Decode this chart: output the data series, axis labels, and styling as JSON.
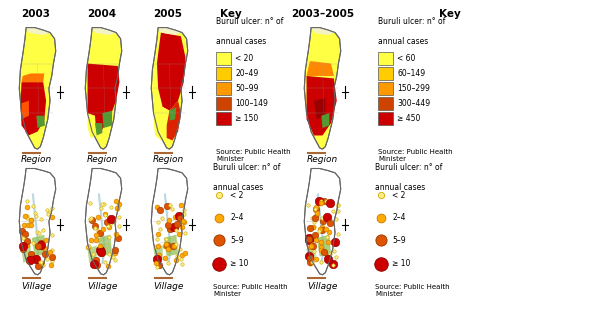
{
  "bg_color": "#ffffff",
  "region_key_labels_annual": [
    "< 20",
    "20–49",
    "50–99",
    "100–149",
    "≥ 150"
  ],
  "region_key_labels_cumul": [
    "< 60",
    "60–149",
    "150–299",
    "300–449",
    "≥ 450"
  ],
  "village_key_labels": [
    "< 2",
    "2–4",
    "5–9",
    "≥ 10"
  ],
  "col_titles": [
    "2003",
    "2004",
    "2005",
    "Key",
    "2003–2005",
    "Key"
  ],
  "key_colors_annual": [
    "#ffff44",
    "#ffcc00",
    "#ff9900",
    "#cc4400",
    "#cc0000"
  ],
  "key_colors_cumul": [
    "#ffff44",
    "#ffcc00",
    "#ff9900",
    "#cc4400",
    "#cc0000"
  ],
  "dot_colors": [
    "#ffee88",
    "#ffaa00",
    "#dd5500",
    "#cc0000"
  ],
  "dot_edge_colors": [
    "#ccaa00",
    "#cc7700",
    "#993300",
    "#880000"
  ],
  "map_outline_color": "#666666",
  "region_boundary_color": "#999999",
  "green_color": "#559933",
  "water_color": "#aaccdd",
  "scale_bar_color": "#aa6633",
  "source_text": "Source: Public Health\nMinister"
}
